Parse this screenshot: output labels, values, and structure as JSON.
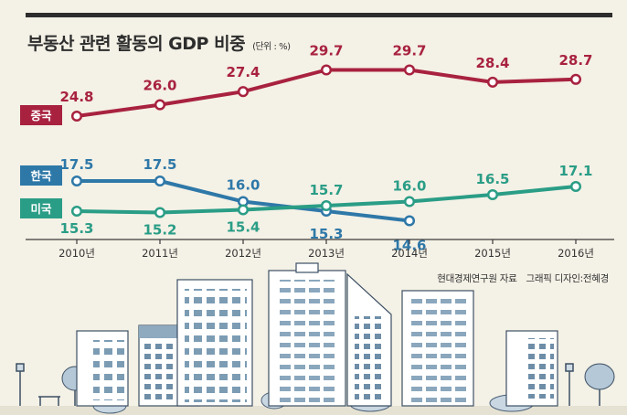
{
  "header": {
    "title": "부동산 관련 활동의 GDP 비중",
    "unit": "(단위 : %)"
  },
  "footer": {
    "source": "현대경제연구원 자료",
    "credit": "그래픽 디자인:전혜경"
  },
  "chart_data": {
    "type": "line",
    "title": "부동산 관련 활동의 GDP 비중",
    "unit": "(단위 : %)",
    "x": [
      "2010년",
      "2011년",
      "2012년",
      "2013년",
      "2014년",
      "2015년",
      "2016년"
    ],
    "series": [
      {
        "name": "중국",
        "color": "#a8223f",
        "values": [
          24.8,
          26.0,
          27.4,
          29.7,
          29.7,
          28.4,
          28.7
        ]
      },
      {
        "name": "한국",
        "color": "#2e78a8",
        "values": [
          17.5,
          17.5,
          16.0,
          15.3,
          14.6,
          null,
          null
        ]
      },
      {
        "name": "미국",
        "color": "#2a9d86",
        "values": [
          15.3,
          15.2,
          15.4,
          15.7,
          16.0,
          16.5,
          17.1
        ]
      }
    ],
    "grid": false,
    "legend": "left"
  }
}
